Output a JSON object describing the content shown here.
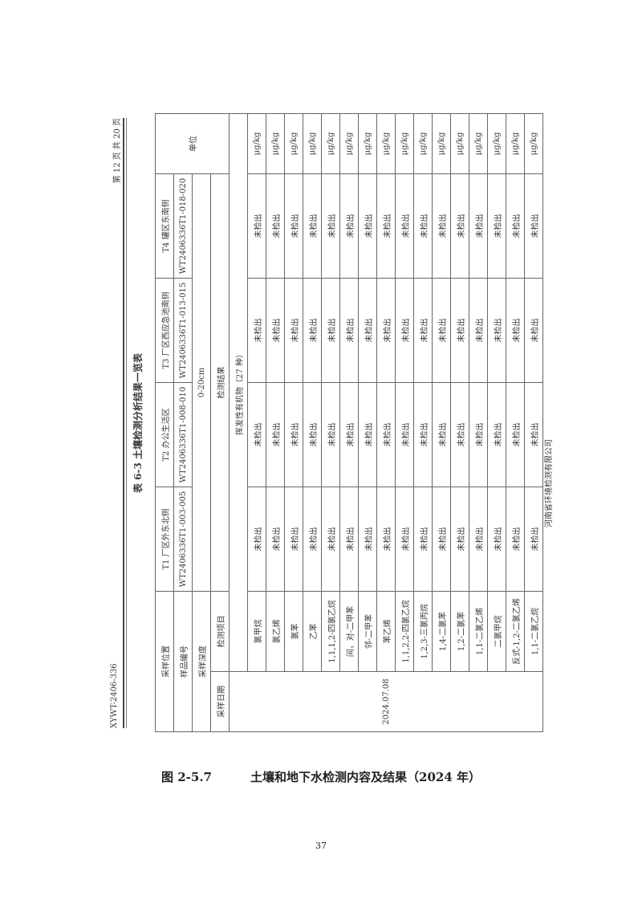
{
  "scan": {
    "doc_code": "XYWT-2406-336",
    "page_info": "第 12 页 共 20 页",
    "table_title": "表 6-3  土壤检测分析结果一览表",
    "labels": {
      "location": "采样位置",
      "sample_no": "样品编号",
      "depth": "采样深度",
      "date": "采样日期",
      "item": "检测项目",
      "result": "检测结果",
      "unit": "单位",
      "group": "挥发性有机物（27 种）"
    },
    "depth_value": "0-20cm",
    "date_value": "2024.07.08",
    "sites": [
      {
        "location": "T1 厂区外东北侧",
        "sample_no": "WT240633​6T1-003-005"
      },
      {
        "location": "T2 办公生活区",
        "sample_no": "WT2406336T1-008-010"
      },
      {
        "location": "T3 厂区西应急池南侧",
        "sample_no": "WT2406336T1-013-015"
      },
      {
        "location": "T4 罐区东南侧",
        "sample_no": "WT2406336T1-018-020"
      }
    ],
    "rows": [
      {
        "item": "氯甲烷",
        "values": [
          "未检出",
          "未检出",
          "未检出",
          "未检出"
        ],
        "unit": "μg/kg"
      },
      {
        "item": "氯乙烯",
        "values": [
          "未检出",
          "未检出",
          "未检出",
          "未检出"
        ],
        "unit": "μg/kg"
      },
      {
        "item": "氯苯",
        "values": [
          "未检出",
          "未检出",
          "未检出",
          "未检出"
        ],
        "unit": "μg/kg"
      },
      {
        "item": "乙苯",
        "values": [
          "未检出",
          "未检出",
          "未检出",
          "未检出"
        ],
        "unit": "μg/kg"
      },
      {
        "item": "1,1,1,2-四氯乙烷",
        "values": [
          "未检出",
          "未检出",
          "未检出",
          "未检出"
        ],
        "unit": "μg/kg"
      },
      {
        "item": "间，对-二甲苯",
        "values": [
          "未检出",
          "未检出",
          "未检出",
          "未检出"
        ],
        "unit": "μg/kg"
      },
      {
        "item": "邻-二甲苯",
        "values": [
          "未检出",
          "未检出",
          "未检出",
          "未检出"
        ],
        "unit": "μg/kg"
      },
      {
        "item": "苯乙烯",
        "values": [
          "未检出",
          "未检出",
          "未检出",
          "未检出"
        ],
        "unit": "μg/kg"
      },
      {
        "item": "1,1,2,2-四氯乙烷",
        "values": [
          "未检出",
          "未检出",
          "未检出",
          "未检出"
        ],
        "unit": "μg/kg"
      },
      {
        "item": "1,2,3-三氯丙烷",
        "values": [
          "未检出",
          "未检出",
          "未检出",
          "未检出"
        ],
        "unit": "μg/kg"
      },
      {
        "item": "1,4-二氯苯",
        "values": [
          "未检出",
          "未检出",
          "未检出",
          "未检出"
        ],
        "unit": "μg/kg"
      },
      {
        "item": "1,2-二氯苯",
        "values": [
          "未检出",
          "未检出",
          "未检出",
          "未检出"
        ],
        "unit": "μg/kg"
      },
      {
        "item": "1,1-二氯乙烯",
        "values": [
          "未检出",
          "未检出",
          "未检出",
          "未检出"
        ],
        "unit": "μg/kg"
      },
      {
        "item": "二氯甲烷",
        "values": [
          "未检出",
          "未检出",
          "未检出",
          "未检出"
        ],
        "unit": "μg/kg"
      },
      {
        "item": "反式-1,2-二氯乙烯",
        "values": [
          "未检出",
          "未检出",
          "未检出",
          "未检出"
        ],
        "unit": "μg/kg"
      },
      {
        "item": "1,1-二氯乙烷",
        "values": [
          "未检出",
          "未检出",
          "未检出",
          "未检出"
        ],
        "unit": "μg/kg"
      }
    ],
    "company": "河南省环境检测有限公司"
  },
  "caption": {
    "number": "图 2-5.7",
    "text": "土壤和地下水检测内容及结果（2024 年）"
  },
  "page_number": "37"
}
